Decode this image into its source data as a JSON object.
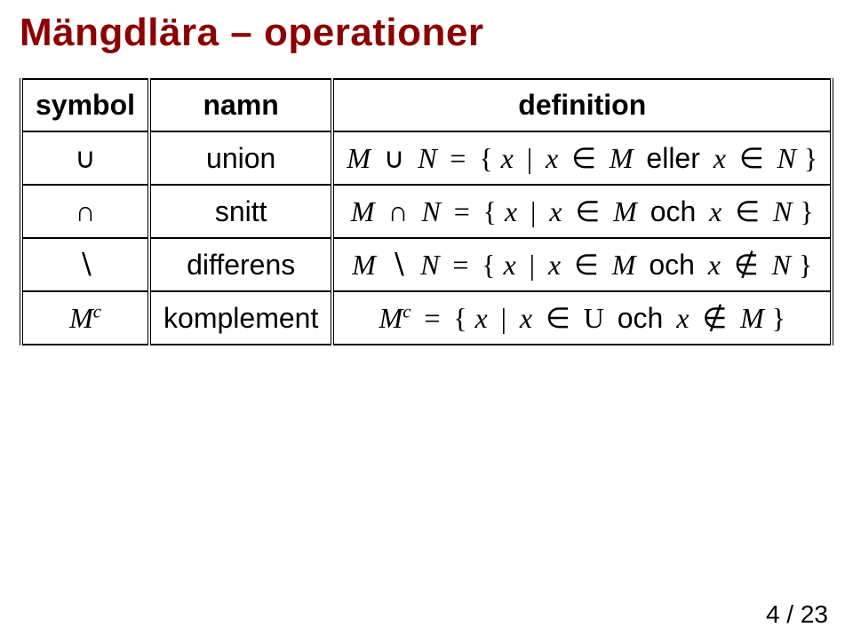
{
  "title": "Mängdlära – operationer",
  "columns": {
    "c1": "symbol",
    "c2": "namn",
    "c3": "definition"
  },
  "rows": {
    "union": {
      "name": "union",
      "word": "eller",
      "neg": false
    },
    "intersect": {
      "name": "snitt",
      "word": "och",
      "neg": false
    },
    "difference": {
      "name": "differens",
      "word": "och",
      "neg": true
    },
    "complement": {
      "name": "komplement",
      "word": "och",
      "neg": true
    }
  },
  "symbols": {
    "union": "∪",
    "intersect": "∩",
    "setminus": "∖",
    "in": "∈",
    "notin": "∉",
    "eq": "=",
    "lbrace": "{",
    "rbrace": "}",
    "bar": "|",
    "M": "M",
    "N": "N",
    "x": "x",
    "c": "c",
    "U": "U"
  },
  "pagenum": "4 / 23"
}
